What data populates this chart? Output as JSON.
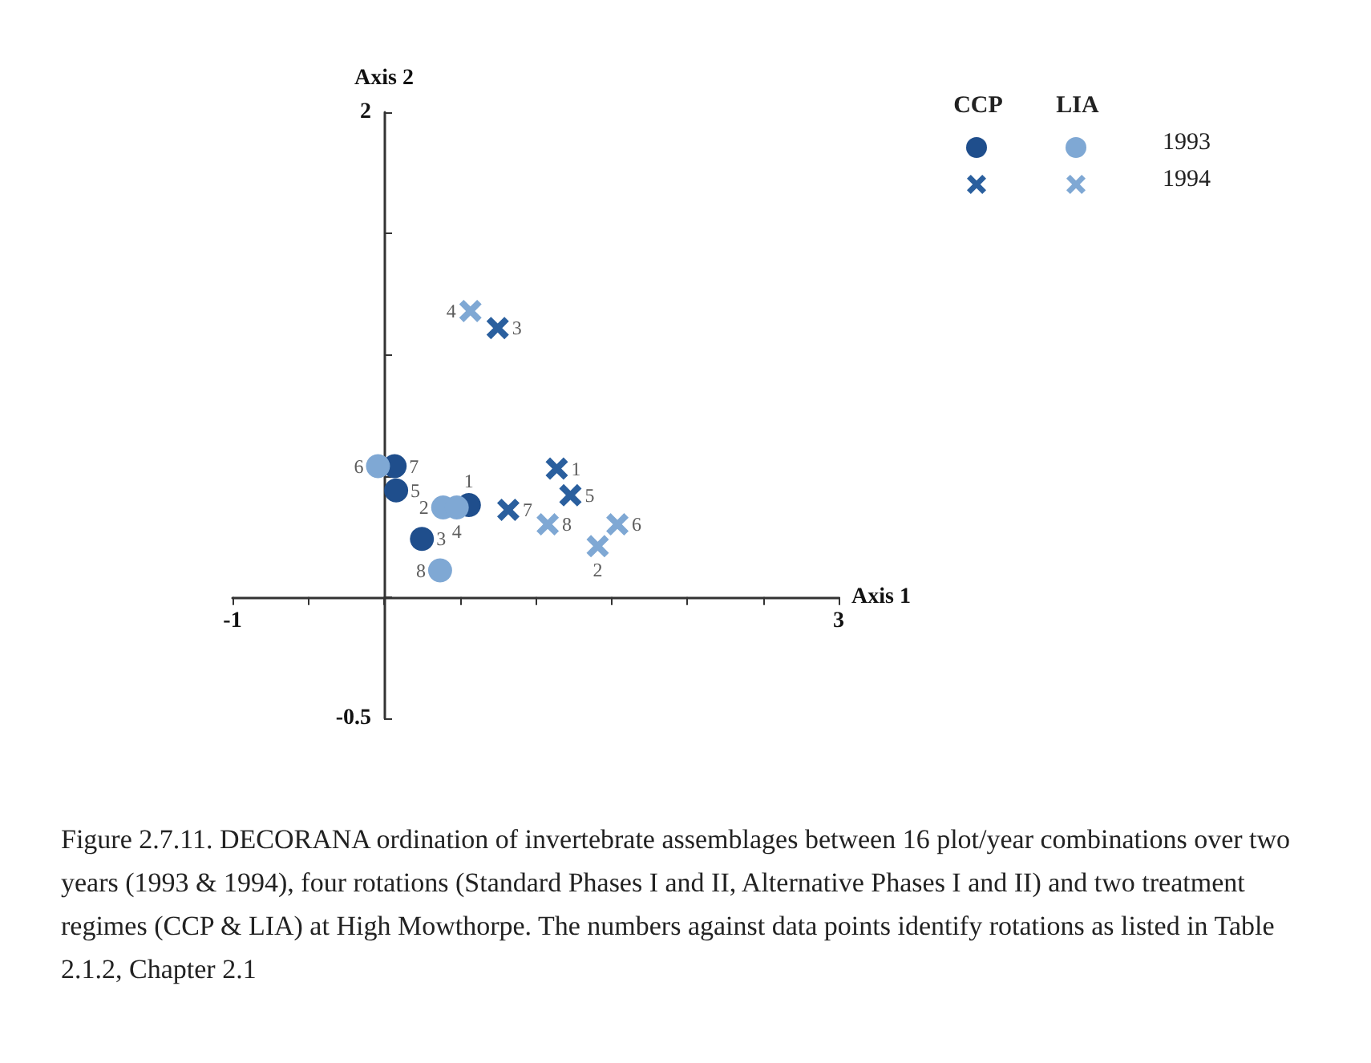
{
  "chart_data": {
    "type": "scatter",
    "xlabel": "Axis 1",
    "ylabel": "Axis 2",
    "xlim": [
      -1,
      3
    ],
    "xticks": [
      -1,
      {
        "value": -0.5,
        "label": null
      },
      {
        "value": 0,
        "label": null
      },
      {
        "value": 0.5,
        "label": null
      },
      {
        "value": 1,
        "label": null
      },
      {
        "value": 1.5,
        "label": null
      },
      {
        "value": 2,
        "label": null
      },
      {
        "value": 2.5,
        "label": null
      },
      3
    ],
    "ylim": [
      -0.5,
      2
    ],
    "yticks": [
      -0.5,
      {
        "value": 0,
        "label": null
      },
      {
        "value": 0.5,
        "label": null
      },
      {
        "value": 1,
        "label": null
      },
      {
        "value": 1.5,
        "label": null
      },
      2
    ],
    "series": [
      {
        "color": "#1f4e8c",
        "marker": "circle",
        "x": [
          0.07,
          0.08,
          0.56,
          0.25
        ],
        "values": [
          0.54,
          0.44,
          0.38,
          0.24
        ]
      },
      {
        "color": "#7fa8d4",
        "marker": "circle",
        "x": [
          -0.04,
          0.39,
          0.48,
          0.37
        ],
        "values": [
          0.54,
          0.37,
          0.37,
          0.11
        ]
      },
      {
        "color": "#2a5f9e",
        "marker": "cross",
        "x": [
          0.75,
          1.14,
          1.23,
          0.82
        ],
        "values": [
          1.11,
          0.53,
          0.42,
          0.36
        ]
      },
      {
        "color": "#7fa8d4",
        "marker": "cross",
        "x": [
          0.57,
          1.08,
          1.54,
          1.41
        ],
        "values": [
          1.18,
          0.3,
          0.3,
          0.21
        ]
      }
    ],
    "annotations": [
      "CCP",
      "LIA",
      "1993",
      "1994",
      "Figure 2.7.11.  DECORANA ordination of invertebrate assemblages between 16 plot/year combinations over two years (1993 & 1994), four rotations (Standard Phases I and II, Alternative Phases I and II) and two treatment regimes (CCP & LIA) at High Mowthorpe. The numbers against data points identify rotations as listed in Table 2.1.2, Chapter 2.1",
      {
        "text": "7",
        "x": 0.07,
        "y": 0.54
      },
      {
        "text": "5",
        "x": 0.08,
        "y": 0.44
      },
      {
        "text": "1",
        "x": 0.56,
        "y": 0.38
      },
      {
        "text": "3",
        "x": 0.25,
        "y": 0.24
      },
      {
        "text": "6",
        "x": -0.04,
        "y": 0.54
      },
      {
        "text": "2",
        "x": 0.39,
        "y": 0.37
      },
      {
        "text": "4",
        "x": 0.48,
        "y": 0.37
      },
      {
        "text": "8",
        "x": 0.37,
        "y": 0.11
      },
      {
        "text": "3",
        "x": 0.75,
        "y": 1.11
      },
      {
        "text": "1",
        "x": 1.14,
        "y": 0.53
      },
      {
        "text": "5",
        "x": 1.23,
        "y": 0.42
      },
      {
        "text": "7",
        "x": 0.82,
        "y": 0.36
      },
      {
        "text": "4",
        "x": 0.57,
        "y": 1.18
      },
      {
        "text": "8",
        "x": 1.08,
        "y": 0.3
      },
      {
        "text": "6",
        "x": 1.54,
        "y": 0.3
      },
      {
        "text": "2",
        "x": 1.41,
        "y": 0.21
      }
    ]
  }
}
